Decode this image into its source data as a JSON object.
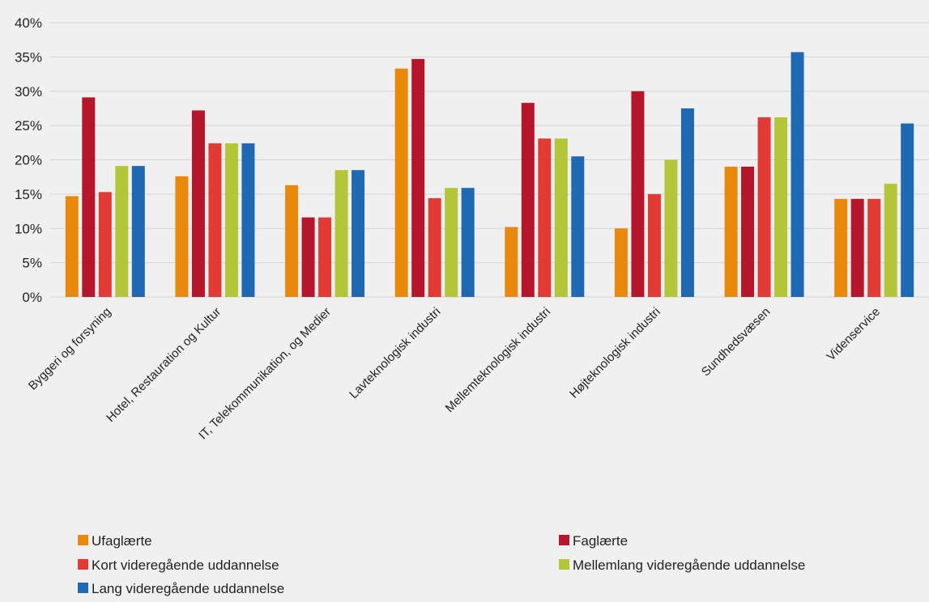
{
  "chart_data": {
    "type": "bar",
    "categories": [
      "Byggeri og forsyning",
      "Hotel, Restauration og Kultur",
      "IT, Telekommunikation, og Medier",
      "Lavteknologisk industri",
      "Mellemteknologisk industri",
      "Højteknologisk industri",
      "Sundhedsvæsen",
      "Videnservice"
    ],
    "series": [
      {
        "name": "Ufaglærte",
        "color": "#e8890c",
        "values": [
          14.7,
          17.6,
          16.3,
          33.3,
          10.2,
          10.0,
          19.0,
          14.3
        ]
      },
      {
        "name": "Faglærte",
        "color": "#b5162b",
        "values": [
          29.1,
          27.2,
          11.6,
          34.7,
          28.3,
          30.0,
          19.0,
          14.3
        ]
      },
      {
        "name": "Kort videregående uddannelse",
        "color": "#e23b36",
        "values": [
          15.3,
          22.4,
          11.6,
          14.4,
          23.1,
          15.0,
          26.2,
          14.3
        ]
      },
      {
        "name": "Mellemlang videregående uddannelse",
        "color": "#b3c638",
        "values": [
          19.1,
          22.4,
          18.5,
          15.9,
          23.1,
          20.0,
          26.2,
          16.5
        ]
      },
      {
        "name": "Lang videregående uddannelse",
        "color": "#1f68b2",
        "values": [
          19.1,
          22.4,
          18.5,
          15.9,
          20.5,
          27.5,
          35.7,
          25.3
        ]
      }
    ],
    "yticks": [
      "0%",
      "5%",
      "10%",
      "15%",
      "20%",
      "25%",
      "30%",
      "35%",
      "40%"
    ],
    "ylim": [
      0,
      40
    ],
    "grid": true,
    "legend_position": "bottom"
  }
}
